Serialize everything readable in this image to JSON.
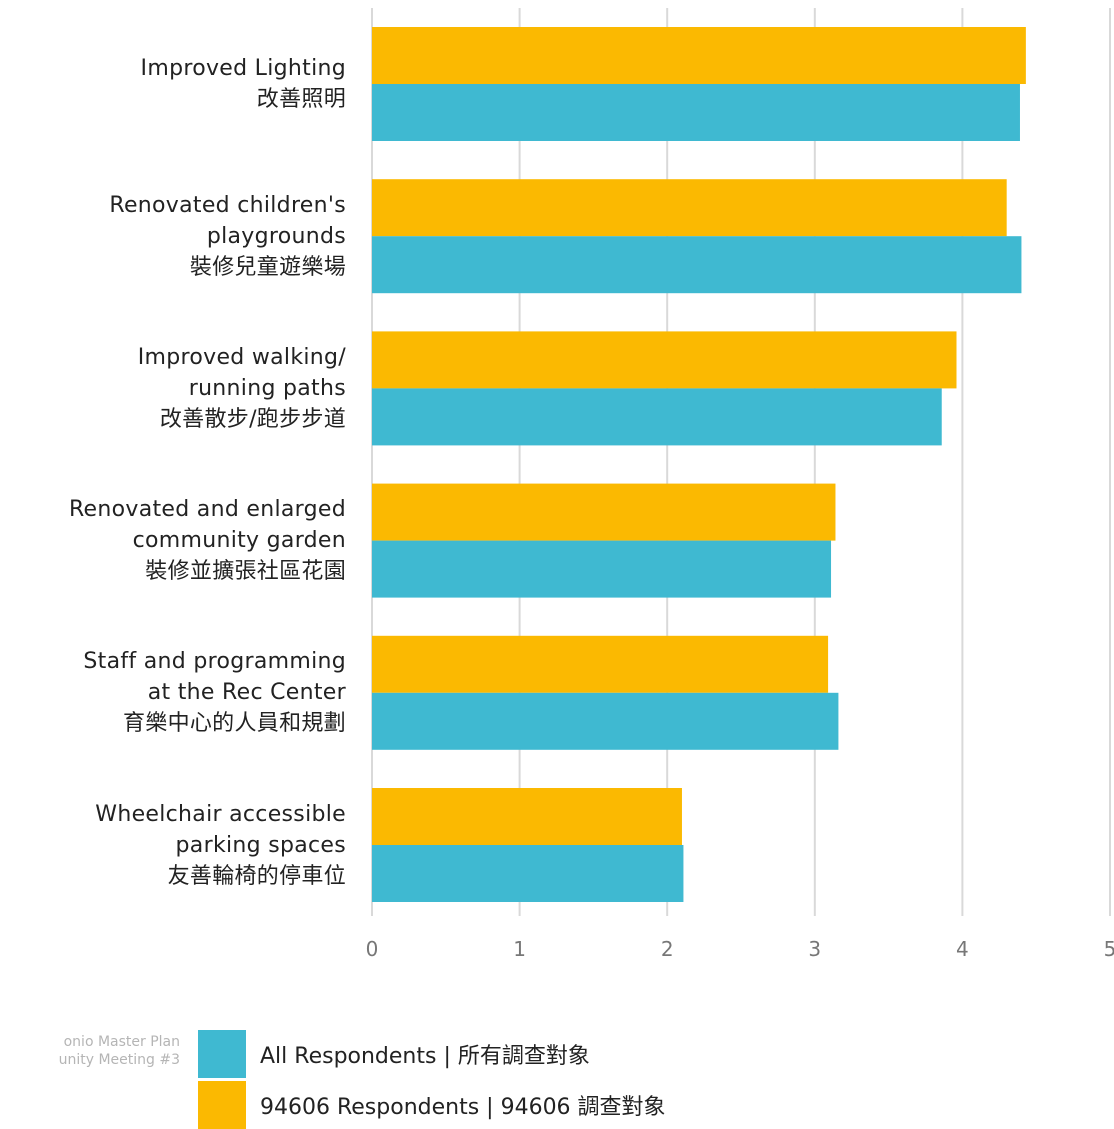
{
  "chart_data": {
    "type": "bar",
    "orientation": "horizontal",
    "categories": [
      [
        "Improved Lighting",
        "改善照明"
      ],
      [
        "Renovated children's",
        "playgrounds",
        "裝修兒童遊樂場"
      ],
      [
        "Improved walking/",
        "running paths",
        "改善散步/跑步步道"
      ],
      [
        "Renovated and enlarged",
        "community garden",
        "裝修並擴張社區花園"
      ],
      [
        "Staff and programming",
        "at the Rec Center",
        "育樂中心的人員和規劃"
      ],
      [
        "Wheelchair accessible",
        "parking spaces",
        "友善輪椅的停車位"
      ]
    ],
    "series": [
      {
        "name": "94606 Respondents | 94606 調查對象",
        "color": "#FBB901",
        "values": [
          4.43,
          4.3,
          3.96,
          3.14,
          3.09,
          2.1
        ]
      },
      {
        "name": "All Respondents | 所有調查對象",
        "color": "#3FB9D1",
        "values": [
          4.39,
          4.4,
          3.86,
          3.11,
          3.16,
          2.11
        ]
      }
    ],
    "xlim": [
      0,
      5
    ],
    "xticks": [
      "0",
      "1",
      "2",
      "3",
      "4",
      "5"
    ],
    "grid": true,
    "legend": "bottom"
  },
  "legend": [
    {
      "label": "All Respondents | 所有調查對象",
      "color": "#3FB9D1"
    },
    {
      "label": "94606 Respondents | 94606 調查對象",
      "color": "#FBB901"
    }
  ],
  "footer": {
    "line1": "onio Master Plan",
    "line2": "unity Meeting #3"
  }
}
